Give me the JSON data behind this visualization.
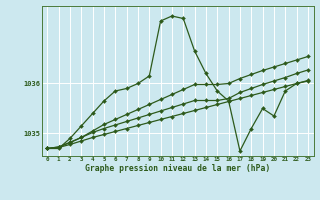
{
  "title": "Graphe pression niveau de la mer (hPa)",
  "bg_color": "#cce8ef",
  "grid_color": "#ffffff",
  "line_color": "#2d5a1b",
  "x_labels": [
    "0",
    "1",
    "2",
    "3",
    "4",
    "5",
    "6",
    "7",
    "8",
    "9",
    "10",
    "11",
    "12",
    "13",
    "14",
    "15",
    "16",
    "17",
    "18",
    "19",
    "20",
    "21",
    "22",
    "23"
  ],
  "y_ticks": [
    1035,
    1036
  ],
  "ylim_min": 1034.55,
  "ylim_max": 1037.55,
  "series_main": [
    1034.7,
    1034.7,
    1034.9,
    1035.15,
    1035.4,
    1035.65,
    1035.85,
    1035.9,
    1036.0,
    1036.15,
    1037.25,
    1037.35,
    1037.3,
    1036.65,
    1036.2,
    1035.85,
    1035.65,
    1034.65,
    1035.1,
    1035.5,
    1035.35,
    1035.85,
    1036.0,
    1036.05
  ],
  "series_trend1": [
    1034.7,
    1034.72,
    1034.78,
    1034.85,
    1034.92,
    1034.98,
    1035.04,
    1035.1,
    1035.16,
    1035.22,
    1035.28,
    1035.34,
    1035.4,
    1035.46,
    1035.52,
    1035.58,
    1035.64,
    1035.7,
    1035.76,
    1035.82,
    1035.88,
    1035.94,
    1036.0,
    1036.06
  ],
  "series_trend2": [
    1034.7,
    1034.73,
    1034.82,
    1034.92,
    1035.02,
    1035.1,
    1035.17,
    1035.24,
    1035.31,
    1035.38,
    1035.45,
    1035.52,
    1035.59,
    1035.66,
    1035.66,
    1035.66,
    1035.7,
    1035.82,
    1035.9,
    1035.98,
    1036.05,
    1036.12,
    1036.2,
    1036.27
  ],
  "series_trend3": [
    1034.7,
    1034.73,
    1034.82,
    1034.92,
    1035.05,
    1035.18,
    1035.28,
    1035.38,
    1035.48,
    1035.58,
    1035.68,
    1035.78,
    1035.88,
    1035.98,
    1035.98,
    1035.98,
    1036.0,
    1036.1,
    1036.18,
    1036.26,
    1036.33,
    1036.4,
    1036.47,
    1036.54
  ],
  "figsize": [
    3.2,
    2.0
  ],
  "dpi": 100
}
